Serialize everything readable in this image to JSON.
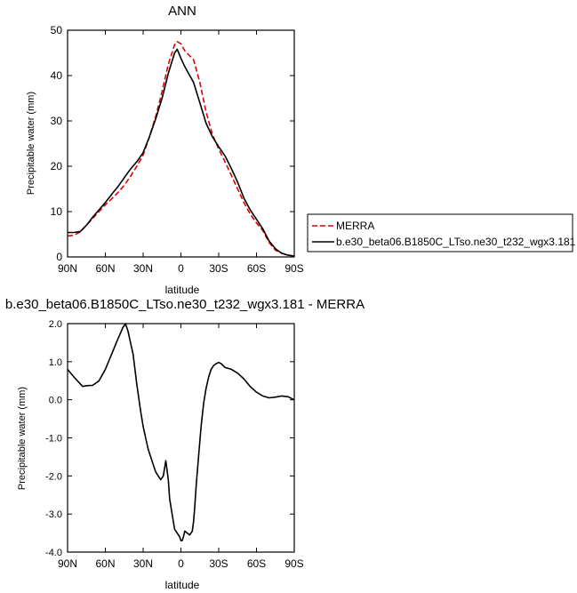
{
  "chart_data": [
    {
      "type": "line",
      "title": "ANN",
      "xlabel": "latitude",
      "ylabel": "Precipitable water (mm)",
      "xlim": [
        90,
        -90
      ],
      "ylim": [
        0,
        50
      ],
      "x_ticks": [
        90,
        60,
        30,
        0,
        -30,
        -60,
        -90
      ],
      "x_tick_labels": [
        "90N",
        "60N",
        "30N",
        "0",
        "30S",
        "60S",
        "90S"
      ],
      "y_ticks": [
        0,
        10,
        20,
        30,
        40,
        50
      ],
      "y_tick_labels": [
        "0",
        "10",
        "20",
        "30",
        "40",
        "50"
      ],
      "legend_position": "right",
      "series": [
        {
          "name": "MERRA",
          "color": "#e00000",
          "dash": "dashed",
          "x": [
            90,
            85,
            80,
            75,
            70,
            65,
            60,
            55,
            50,
            45,
            40,
            35,
            30,
            25,
            20,
            15,
            10,
            5,
            3,
            0,
            -3,
            -5,
            -10,
            -15,
            -20,
            -25,
            -30,
            -35,
            -40,
            -45,
            -50,
            -55,
            -60,
            -65,
            -70,
            -75,
            -80,
            -85,
            -90
          ],
          "y": [
            4.6,
            4.8,
            5.5,
            7.0,
            8.5,
            10.0,
            11.5,
            12.8,
            14.2,
            15.8,
            17.8,
            20.0,
            22.5,
            26.5,
            31.0,
            36.5,
            42.5,
            46.8,
            47.5,
            47.0,
            45.5,
            44.9,
            43.5,
            38.5,
            32.0,
            27.0,
            23.8,
            21.0,
            18.0,
            15.0,
            12.0,
            9.5,
            7.5,
            5.8,
            3.2,
            1.5,
            0.8,
            0.4,
            0.2
          ]
        },
        {
          "name": "b.e30_beta06.B1850C_LTso.ne30_t232_wgx3.181",
          "color": "#000000",
          "dash": "solid",
          "x": [
            90,
            85,
            80,
            75,
            70,
            65,
            60,
            55,
            50,
            45,
            40,
            35,
            30,
            25,
            20,
            15,
            10,
            5,
            3,
            0,
            -3,
            -5,
            -10,
            -15,
            -20,
            -25,
            -30,
            -35,
            -40,
            -45,
            -50,
            -55,
            -60,
            -65,
            -70,
            -75,
            -80,
            -85,
            -90
          ],
          "y": [
            5.4,
            5.4,
            5.6,
            7.0,
            8.8,
            10.4,
            12.0,
            13.8,
            15.5,
            17.5,
            19.4,
            21.0,
            23.0,
            26.5,
            30.5,
            35.0,
            40.5,
            45.0,
            45.8,
            43.8,
            42.0,
            41.0,
            38.5,
            34.0,
            29.5,
            26.5,
            24.3,
            22.3,
            19.5,
            16.5,
            13.0,
            10.4,
            8.3,
            6.2,
            3.5,
            1.8,
            0.8,
            0.4,
            0.2
          ]
        }
      ]
    },
    {
      "type": "line",
      "title": "b.e30_beta06.B1850C_LTso.ne30_t232_wgx3.181 - MERRA",
      "xlabel": "latitude",
      "ylabel": "Precipitable water (mm)",
      "xlim": [
        90,
        -90
      ],
      "ylim": [
        -4.0,
        2.0
      ],
      "x_ticks": [
        90,
        60,
        30,
        0,
        -30,
        -60,
        -90
      ],
      "x_tick_labels": [
        "90N",
        "60N",
        "30N",
        "0",
        "30S",
        "60S",
        "90S"
      ],
      "y_ticks": [
        -4,
        -3,
        -2,
        -1,
        0,
        1,
        2
      ],
      "y_tick_labels": [
        "-4.0",
        "-3.0",
        "-2.0",
        "-1.0",
        "0.0",
        "1.0",
        "2.0"
      ],
      "series": [
        {
          "color": "#000000",
          "dash": "solid",
          "x": [
            90,
            85,
            80,
            78,
            75,
            70,
            65,
            60,
            55,
            50,
            46,
            44,
            42,
            40,
            38,
            35,
            32,
            30,
            28,
            26,
            24,
            22,
            20,
            18,
            16,
            14,
            12,
            10,
            9,
            8,
            7,
            6,
            5,
            3,
            1,
            0,
            -1,
            -2,
            -3,
            -5,
            -7,
            -9,
            -10,
            -11,
            -12,
            -14,
            -16,
            -18,
            -20,
            -22,
            -24,
            -26,
            -28,
            -30,
            -32,
            -35,
            -40,
            -45,
            -50,
            -55,
            -60,
            -65,
            -70,
            -75,
            -80,
            -85,
            -90
          ],
          "y": [
            0.8,
            0.6,
            0.42,
            0.35,
            0.37,
            0.38,
            0.5,
            0.8,
            1.2,
            1.6,
            1.9,
            2.0,
            1.8,
            1.5,
            1.2,
            0.4,
            -0.3,
            -0.7,
            -1.0,
            -1.3,
            -1.5,
            -1.7,
            -1.9,
            -2.0,
            -2.1,
            -2.0,
            -1.6,
            -2.1,
            -2.6,
            -2.8,
            -3.0,
            -3.2,
            -3.4,
            -3.5,
            -3.6,
            -3.7,
            -3.7,
            -3.6,
            -3.45,
            -3.5,
            -3.55,
            -3.45,
            -3.2,
            -2.8,
            -2.3,
            -1.5,
            -0.7,
            -0.1,
            0.3,
            0.6,
            0.8,
            0.9,
            0.95,
            0.98,
            0.95,
            0.85,
            0.8,
            0.7,
            0.55,
            0.35,
            0.2,
            0.1,
            0.05,
            0.07,
            0.1,
            0.08,
            0.0
          ]
        }
      ]
    }
  ]
}
